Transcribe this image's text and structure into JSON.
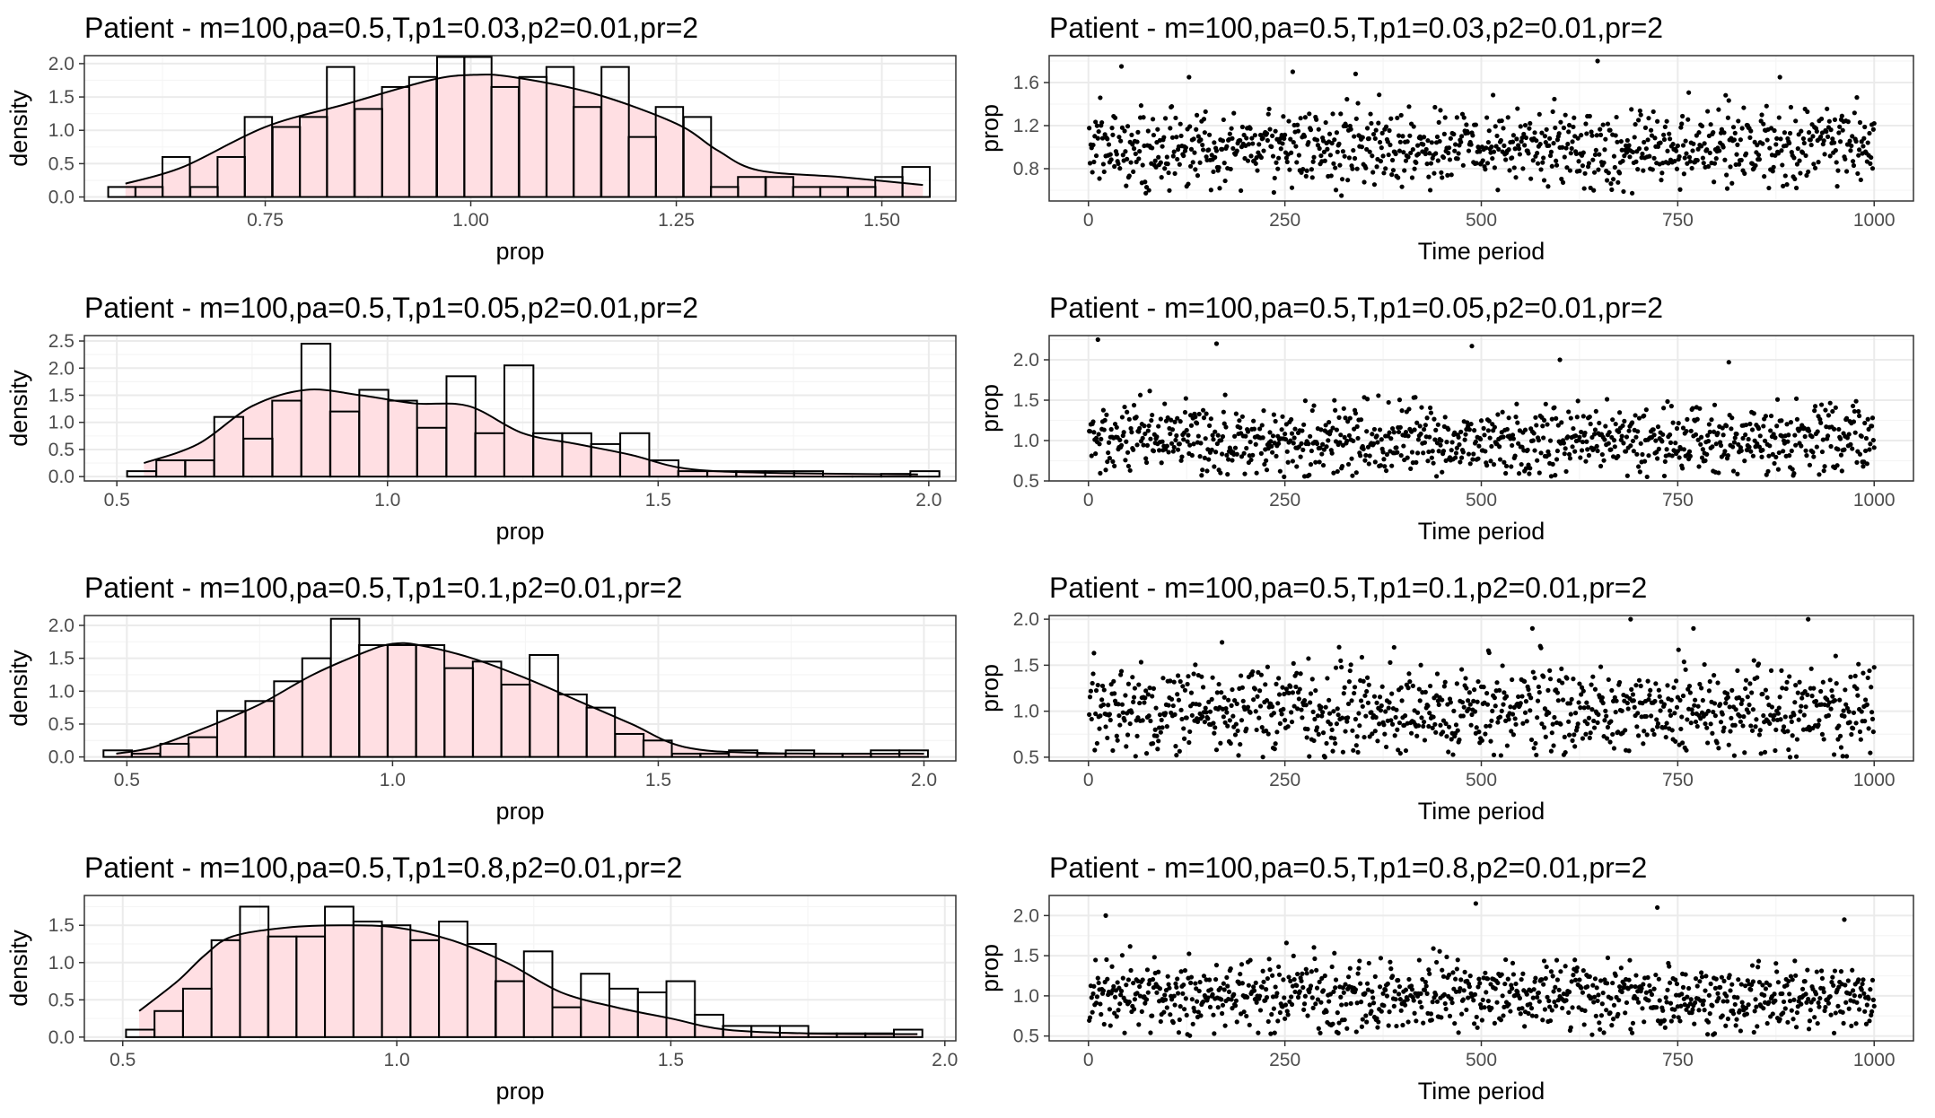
{
  "chart_data": [
    {
      "type": "histogram",
      "title": "Patient - m=100,pa=0.5,T,p1=0.03,p2=0.01,pr=2",
      "xlabel": "prop",
      "ylabel": "density",
      "xlim": [
        0.53,
        1.59
      ],
      "ylim": [
        -0.06,
        2.12
      ],
      "xticks": [
        0.75,
        1.0,
        1.25,
        1.5
      ],
      "xtick_labels": [
        "0.75",
        "1.00",
        "1.25",
        "1.50"
      ],
      "yticks": [
        0.0,
        0.5,
        1.0,
        1.5,
        2.0
      ],
      "ytick_labels": [
        "0.0",
        "0.5",
        "1.0",
        "1.5",
        "2.0"
      ],
      "grid": true,
      "bin_width": 0.0333,
      "bin_starts": [
        0.559,
        0.592,
        0.625,
        0.659,
        0.692,
        0.725,
        0.759,
        0.792,
        0.825,
        0.859,
        0.892,
        0.925,
        0.959,
        0.992,
        1.025,
        1.059,
        1.092,
        1.125,
        1.159,
        1.192,
        1.225,
        1.259,
        1.292,
        1.325,
        1.359,
        1.392,
        1.425,
        1.459,
        1.492,
        1.525
      ],
      "counts_density": [
        0.15,
        0.15,
        0.6,
        0.15,
        0.6,
        1.2,
        1.05,
        1.2,
        1.95,
        1.32,
        1.65,
        1.8,
        2.1,
        2.1,
        1.65,
        1.8,
        1.95,
        1.35,
        1.95,
        0.9,
        1.35,
        1.2,
        0.15,
        0.3,
        0.3,
        0.15,
        0.15,
        0.15,
        0.3,
        0.45
      ],
      "density_curve": {
        "x": [
          0.58,
          0.65,
          0.75,
          0.85,
          0.95,
          1.0,
          1.05,
          1.15,
          1.25,
          1.3,
          1.35,
          1.45,
          1.55
        ],
        "y": [
          0.2,
          0.45,
          1.05,
          1.4,
          1.75,
          1.83,
          1.8,
          1.55,
          1.1,
          0.7,
          0.4,
          0.3,
          0.18
        ]
      }
    },
    {
      "type": "scatter",
      "title": "Patient - m=100,pa=0.5,T,p1=0.03,p2=0.01,pr=2",
      "xlabel": "Time period",
      "ylabel": "prop",
      "xlim": [
        -50,
        1050
      ],
      "ylim": [
        0.5,
        1.85
      ],
      "xticks": [
        0,
        250,
        500,
        750,
        1000
      ],
      "xtick_labels": [
        "0",
        "250",
        "500",
        "750",
        "1000"
      ],
      "yticks": [
        0.8,
        1.2,
        1.6
      ],
      "ytick_labels": [
        "0.8",
        "1.2",
        "1.6"
      ],
      "grid": true,
      "n_points": 1000,
      "series_summary": {
        "x_range": [
          1,
          1000
        ],
        "center": 1.0,
        "spread_sd": 0.18,
        "min": 0.55,
        "max": 1.8
      },
      "outliers": [
        {
          "x": 42,
          "y": 1.75
        },
        {
          "x": 128,
          "y": 1.65
        },
        {
          "x": 260,
          "y": 1.7
        },
        {
          "x": 340,
          "y": 1.68
        },
        {
          "x": 648,
          "y": 1.8
        },
        {
          "x": 880,
          "y": 1.65
        },
        {
          "x": 322,
          "y": 0.55
        }
      ]
    },
    {
      "type": "histogram",
      "title": "Patient - m=100,pa=0.5,T,p1=0.05,p2=0.01,pr=2",
      "xlabel": "prop",
      "ylabel": "density",
      "xlim": [
        0.44,
        2.05
      ],
      "ylim": [
        -0.08,
        2.6
      ],
      "xticks": [
        0.5,
        1.0,
        1.5,
        2.0
      ],
      "xtick_labels": [
        "0.5",
        "1.0",
        "1.5",
        "2.0"
      ],
      "yticks": [
        0.0,
        0.5,
        1.0,
        1.5,
        2.0,
        2.5
      ],
      "ytick_labels": [
        "0.0",
        "0.5",
        "1.0",
        "1.5",
        "2.0",
        "2.5"
      ],
      "grid": true,
      "bin_width": 0.0536,
      "bin_starts": [
        0.519,
        0.573,
        0.626,
        0.68,
        0.734,
        0.787,
        0.841,
        0.894,
        0.948,
        1.001,
        1.055,
        1.109,
        1.162,
        1.216,
        1.269,
        1.323,
        1.376,
        1.43,
        1.484,
        1.537,
        1.591,
        1.644,
        1.698,
        1.751,
        1.805,
        1.859,
        1.912,
        1.966
      ],
      "counts_density": [
        0.1,
        0.3,
        0.3,
        1.1,
        0.7,
        1.4,
        2.45,
        1.2,
        1.6,
        1.4,
        0.9,
        1.85,
        0.8,
        2.05,
        0.8,
        0.8,
        0.6,
        0.8,
        0.3,
        0.1,
        0.1,
        0.1,
        0.1,
        0.1,
        0.0,
        0.0,
        0.05,
        0.1
      ],
      "density_curve": {
        "x": [
          0.55,
          0.65,
          0.75,
          0.85,
          0.95,
          1.05,
          1.15,
          1.25,
          1.35,
          1.45,
          1.55,
          1.7,
          1.98
        ],
        "y": [
          0.25,
          0.6,
          1.3,
          1.6,
          1.5,
          1.35,
          1.3,
          0.8,
          0.6,
          0.4,
          0.15,
          0.07,
          0.04
        ]
      }
    },
    {
      "type": "scatter",
      "title": "Patient - m=100,pa=0.5,T,p1=0.05,p2=0.01,pr=2",
      "xlabel": "Time period",
      "ylabel": "prop",
      "xlim": [
        -50,
        1050
      ],
      "ylim": [
        0.5,
        2.3
      ],
      "xticks": [
        0,
        250,
        500,
        750,
        1000
      ],
      "xtick_labels": [
        "0",
        "250",
        "500",
        "750",
        "1000"
      ],
      "yticks": [
        0.5,
        1.0,
        1.5,
        2.0
      ],
      "ytick_labels": [
        "0.5",
        "1.0",
        "1.5",
        "2.0"
      ],
      "grid": true,
      "n_points": 1000,
      "series_summary": {
        "x_range": [
          1,
          1000
        ],
        "center": 1.0,
        "spread_sd": 0.22,
        "min": 0.55,
        "max": 2.25
      },
      "outliers": [
        {
          "x": 12,
          "y": 2.25
        },
        {
          "x": 163,
          "y": 2.2
        },
        {
          "x": 488,
          "y": 2.17
        },
        {
          "x": 600,
          "y": 2.0
        },
        {
          "x": 815,
          "y": 1.97
        }
      ]
    },
    {
      "type": "histogram",
      "title": "Patient - m=100,pa=0.5,T,p1=0.1,p2=0.01,pr=2",
      "xlabel": "prop",
      "ylabel": "density",
      "xlim": [
        0.42,
        2.06
      ],
      "ylim": [
        -0.06,
        2.15
      ],
      "xticks": [
        0.5,
        1.0,
        1.5,
        2.0
      ],
      "xtick_labels": [
        "0.5",
        "1.0",
        "1.5",
        "2.0"
      ],
      "yticks": [
        0.0,
        0.5,
        1.0,
        1.5,
        2.0
      ],
      "ytick_labels": [
        "0.0",
        "0.5",
        "1.0",
        "1.5",
        "2.0"
      ],
      "grid": true,
      "bin_width": 0.0535,
      "bin_starts": [
        0.456,
        0.509,
        0.563,
        0.616,
        0.67,
        0.723,
        0.777,
        0.83,
        0.884,
        0.937,
        0.991,
        1.044,
        1.098,
        1.151,
        1.205,
        1.258,
        1.312,
        1.365,
        1.419,
        1.472,
        1.526,
        1.579,
        1.633,
        1.686,
        1.74,
        1.793,
        1.847,
        1.9,
        1.954
      ],
      "counts_density": [
        0.1,
        0.05,
        0.2,
        0.3,
        0.7,
        0.85,
        1.15,
        1.5,
        2.1,
        1.7,
        1.7,
        1.7,
        1.35,
        1.45,
        1.1,
        1.55,
        0.95,
        0.75,
        0.35,
        0.25,
        0.05,
        0.05,
        0.1,
        0.05,
        0.1,
        0.05,
        0.05,
        0.1,
        0.1
      ],
      "density_curve": {
        "x": [
          0.48,
          0.55,
          0.65,
          0.75,
          0.85,
          0.95,
          1.0,
          1.05,
          1.15,
          1.25,
          1.35,
          1.45,
          1.55,
          1.7,
          2.0
        ],
        "y": [
          0.05,
          0.15,
          0.45,
          0.8,
          1.25,
          1.6,
          1.72,
          1.7,
          1.5,
          1.2,
          0.85,
          0.5,
          0.15,
          0.06,
          0.05
        ]
      }
    },
    {
      "type": "scatter",
      "title": "Patient - m=100,pa=0.5,T,p1=0.1,p2=0.01,pr=2",
      "xlabel": "Time period",
      "ylabel": "prop",
      "xlim": [
        -50,
        1050
      ],
      "ylim": [
        0.46,
        2.04
      ],
      "xticks": [
        0,
        250,
        500,
        750,
        1000
      ],
      "xtick_labels": [
        "0",
        "250",
        "500",
        "750",
        "1000"
      ],
      "yticks": [
        0.5,
        1.0,
        1.5,
        2.0
      ],
      "ytick_labels": [
        "0.5",
        "1.0",
        "1.5",
        "2.0"
      ],
      "grid": true,
      "n_points": 1000,
      "series_summary": {
        "x_range": [
          1,
          1000
        ],
        "center": 1.03,
        "spread_sd": 0.24,
        "min": 0.5,
        "max": 2.0
      },
      "outliers": [
        {
          "x": 690,
          "y": 2.0
        },
        {
          "x": 916,
          "y": 2.0
        },
        {
          "x": 565,
          "y": 1.9
        },
        {
          "x": 770,
          "y": 1.9
        }
      ]
    },
    {
      "type": "histogram",
      "title": "Patient - m=100,pa=0.5,T,p1=0.8,p2=0.01,pr=2",
      "xlabel": "prop",
      "ylabel": "density",
      "xlim": [
        0.43,
        2.02
      ],
      "ylim": [
        -0.05,
        1.9
      ],
      "xticks": [
        0.5,
        1.0,
        1.5,
        2.0
      ],
      "xtick_labels": [
        "0.5",
        "1.0",
        "1.5",
        "2.0"
      ],
      "yticks": [
        0.0,
        0.5,
        1.0,
        1.5
      ],
      "ytick_labels": [
        "0.0",
        "0.5",
        "1.0",
        "1.5"
      ],
      "grid": true,
      "bin_width": 0.0519,
      "bin_starts": [
        0.506,
        0.558,
        0.61,
        0.662,
        0.714,
        0.765,
        0.817,
        0.869,
        0.921,
        0.973,
        1.025,
        1.077,
        1.129,
        1.18,
        1.232,
        1.284,
        1.336,
        1.388,
        1.44,
        1.492,
        1.544,
        1.595,
        1.647,
        1.699,
        1.751,
        1.803,
        1.855,
        1.907
      ],
      "counts_density": [
        0.1,
        0.35,
        0.65,
        1.3,
        1.75,
        1.35,
        1.35,
        1.75,
        1.55,
        1.5,
        1.3,
        1.55,
        1.25,
        0.75,
        1.15,
        0.4,
        0.85,
        0.65,
        0.6,
        0.75,
        0.3,
        0.15,
        0.15,
        0.15,
        0.05,
        0.05,
        0.05,
        0.1
      ],
      "density_curve": {
        "x": [
          0.53,
          0.6,
          0.65,
          0.7,
          0.8,
          0.9,
          1.0,
          1.1,
          1.2,
          1.3,
          1.4,
          1.5,
          1.6,
          1.75,
          1.95
        ],
        "y": [
          0.35,
          0.75,
          1.1,
          1.35,
          1.47,
          1.5,
          1.47,
          1.3,
          1.0,
          0.6,
          0.4,
          0.25,
          0.1,
          0.05,
          0.04
        ]
      }
    },
    {
      "type": "scatter",
      "title": "Patient - m=100,pa=0.5,T,p1=0.8,p2=0.01,pr=2",
      "xlabel": "Time period",
      "ylabel": "prop",
      "xlim": [
        -50,
        1050
      ],
      "ylim": [
        0.44,
        2.25
      ],
      "xticks": [
        0,
        250,
        500,
        750,
        1000
      ],
      "xtick_labels": [
        "0",
        "250",
        "500",
        "750",
        "1000"
      ],
      "yticks": [
        0.5,
        1.0,
        1.5,
        2.0
      ],
      "ytick_labels": [
        "0.5",
        "1.0",
        "1.5",
        "2.0"
      ],
      "grid": true,
      "n_points": 1000,
      "series_summary": {
        "x_range": [
          1,
          1000
        ],
        "center": 1.0,
        "spread_sd": 0.22,
        "min": 0.5,
        "max": 2.15
      },
      "outliers": [
        {
          "x": 22,
          "y": 2.0
        },
        {
          "x": 493,
          "y": 2.15
        },
        {
          "x": 724,
          "y": 2.1
        },
        {
          "x": 962,
          "y": 1.95
        }
      ]
    }
  ],
  "colors": {
    "background": "#ffffff",
    "panel_border": "#333333",
    "grid_major": "#ebebeb",
    "grid_minor": "#f5f5f5",
    "histogram_fill": "#ffdfe3",
    "histogram_bar_outline": "#000000",
    "density_line": "#000000",
    "point": "#000000"
  }
}
